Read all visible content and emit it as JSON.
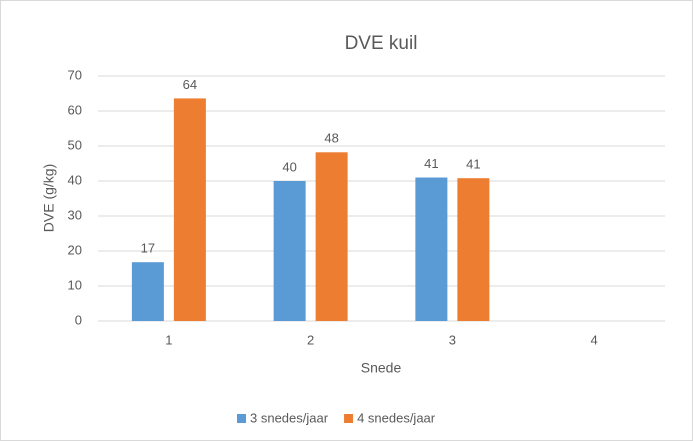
{
  "chart_data": {
    "type": "bar",
    "title": "DVE kuil",
    "x_label": "Snede",
    "y_label": "DVE (g/kg)",
    "categories": [
      "1",
      "2",
      "3",
      "4"
    ],
    "series": [
      {
        "name": "3 snedes/jaar",
        "color": "#5b9bd5",
        "values": [
          16.8,
          40,
          41,
          null
        ],
        "value_labels": [
          "17",
          "40",
          "41",
          null
        ]
      },
      {
        "name": "4 snedes/jaar",
        "color": "#ed7d31",
        "values": [
          63.6,
          48.2,
          40.8,
          null
        ],
        "value_labels": [
          "64",
          "48",
          "41",
          null
        ]
      }
    ],
    "ylim": [
      0,
      70
    ],
    "yticks": [
      0,
      10,
      20,
      30,
      40,
      50,
      60,
      70
    ],
    "grid": true,
    "legend": "bottom"
  }
}
